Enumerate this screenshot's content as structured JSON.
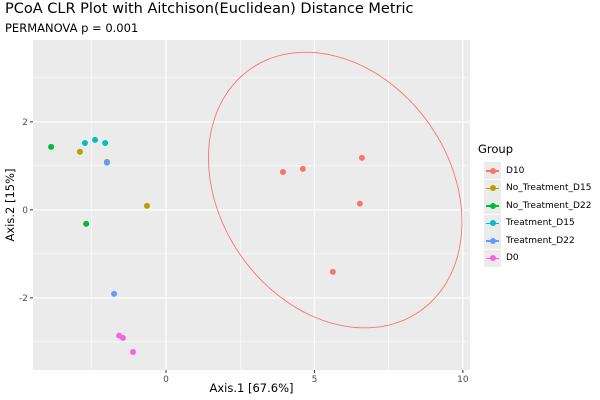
{
  "chart_data": {
    "type": "scatter",
    "title": "PCoA CLR Plot with Aitchison(Euclidean) Distance Metric",
    "subtitle": "PERMANOVA p = 0.001",
    "xlabel": "Axis.1   [67.6%]",
    "ylabel": "Axis.2   [15%]",
    "xlim": [
      -4.48,
      10.24
    ],
    "ylim": [
      -3.64,
      3.86
    ],
    "xticks": [
      0,
      5,
      10
    ],
    "yticks": [
      -2,
      0,
      2
    ],
    "grid": true,
    "legend": {
      "title": "Group",
      "placement": "right"
    },
    "series": [
      {
        "name": "D10",
        "color": "#F8766D",
        "points": [
          [
            3.94,
            0.86
          ],
          [
            4.61,
            0.93
          ],
          [
            6.6,
            1.18
          ],
          [
            6.53,
            0.14
          ],
          [
            5.62,
            -1.41
          ]
        ]
      },
      {
        "name": "No_Treatment_D15",
        "color": "#B79F00",
        "points": [
          [
            -2.9,
            1.32
          ],
          [
            -1.99,
            1.09
          ],
          [
            -0.64,
            0.09
          ]
        ]
      },
      {
        "name": "No_Treatment_D22",
        "color": "#00BA38",
        "points": [
          [
            -3.87,
            1.43
          ],
          [
            -2.69,
            -0.32
          ]
        ]
      },
      {
        "name": "Treatment_D15",
        "color": "#00BFC4",
        "points": [
          [
            -2.73,
            1.52
          ],
          [
            -2.39,
            1.59
          ],
          [
            -2.05,
            1.52
          ]
        ]
      },
      {
        "name": "Treatment_D22",
        "color": "#619CFF",
        "points": [
          [
            -1.99,
            1.07
          ],
          [
            -1.75,
            -1.91
          ]
        ]
      },
      {
        "name": "D0",
        "color": "#F564E3",
        "points": [
          [
            -1.58,
            -2.86
          ],
          [
            -1.45,
            -2.91
          ],
          [
            -1.11,
            -3.23
          ]
        ]
      }
    ],
    "ellipse": {
      "group": "D10",
      "color": "#F8766D",
      "center": [
        5.7,
        0.45
      ],
      "axis1": [
        -2.86,
        2.75
      ],
      "axis2": [
        3.17,
        1.5
      ]
    }
  }
}
